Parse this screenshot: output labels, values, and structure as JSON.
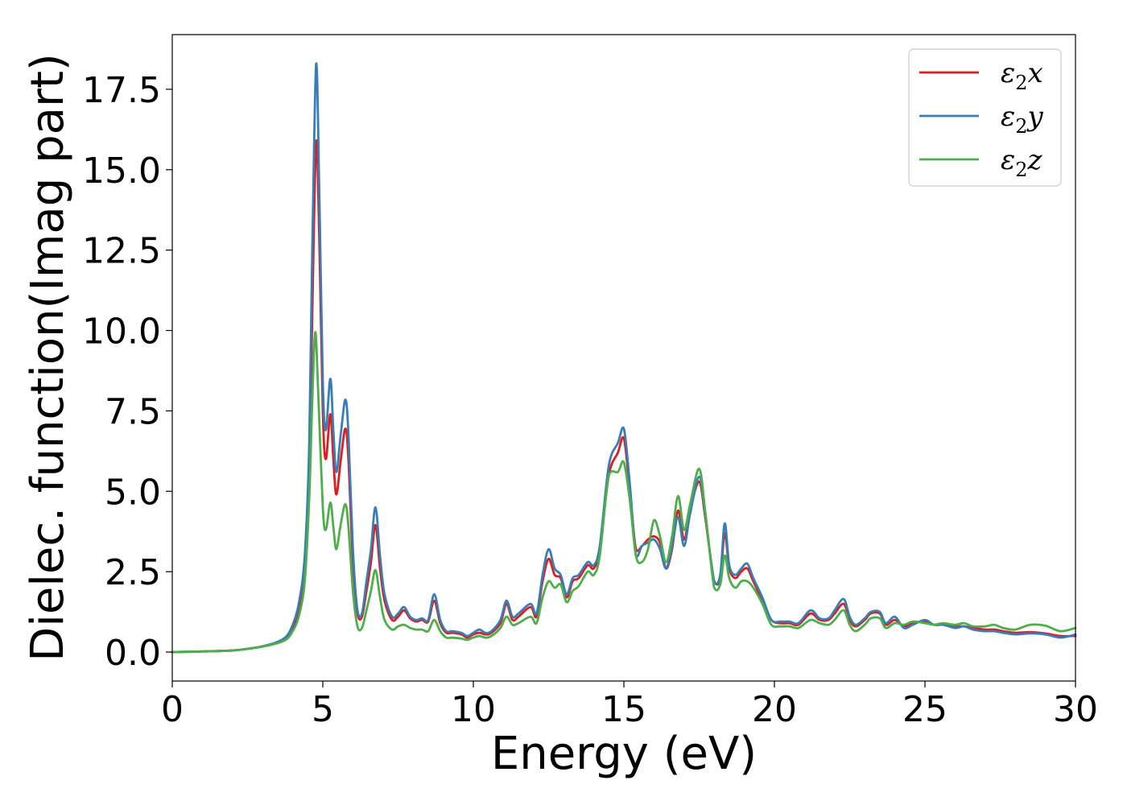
{
  "chart_data": {
    "type": "line",
    "xlabel": "Energy (eV)",
    "ylabel": "Dielec. function(Imag part)",
    "xlim": [
      0,
      30
    ],
    "ylim": [
      -0.9,
      19.2
    ],
    "x_ticks": [
      "0",
      "5",
      "10",
      "15",
      "20",
      "25",
      "30"
    ],
    "y_ticks": [
      "0.0",
      "2.5",
      "5.0",
      "7.5",
      "10.0",
      "12.5",
      "15.0",
      "17.5"
    ],
    "grid": false,
    "legend_position": "top-right",
    "series": [
      {
        "name": "ε2x",
        "legend_main": "ε",
        "legend_sub": "2",
        "legend_suffix": "x",
        "color": "#e41a1c",
        "x": [
          0,
          1,
          2,
          2.5,
          3,
          3.5,
          3.8,
          4.0,
          4.2,
          4.4,
          4.55,
          4.65,
          4.78,
          4.88,
          5.0,
          5.1,
          5.25,
          5.35,
          5.45,
          5.6,
          5.75,
          5.85,
          6.0,
          6.15,
          6.3,
          6.45,
          6.6,
          6.75,
          6.9,
          7.05,
          7.3,
          7.5,
          7.7,
          7.9,
          8.1,
          8.3,
          8.5,
          8.7,
          8.9,
          9.1,
          9.3,
          9.6,
          9.8,
          10.0,
          10.2,
          10.4,
          10.6,
          10.9,
          11.1,
          11.3,
          11.5,
          11.9,
          12.1,
          12.3,
          12.5,
          12.7,
          12.9,
          13.1,
          13.3,
          13.5,
          13.8,
          14.0,
          14.2,
          14.5,
          14.8,
          15.0,
          15.2,
          15.4,
          15.6,
          15.8,
          16.0,
          16.2,
          16.4,
          16.6,
          16.8,
          17.0,
          17.2,
          17.5,
          17.7,
          18.0,
          18.2,
          18.35,
          18.5,
          18.7,
          18.9,
          19.1,
          19.3,
          19.6,
          19.9,
          20.2,
          20.5,
          20.8,
          21.2,
          21.5,
          21.8,
          22.0,
          22.3,
          22.5,
          22.7,
          23.0,
          23.2,
          23.5,
          23.7,
          24.0,
          24.3,
          24.6,
          25.0,
          25.3,
          25.6,
          26.0,
          26.3,
          26.6,
          27.0,
          27.3,
          27.6,
          28.0,
          28.5,
          29.0,
          29.5,
          30.0
        ],
        "y": [
          0.0,
          0.02,
          0.05,
          0.1,
          0.18,
          0.3,
          0.45,
          0.75,
          1.3,
          2.6,
          5.5,
          10.5,
          15.9,
          13.0,
          7.5,
          6.0,
          7.4,
          6.0,
          4.9,
          6.0,
          6.95,
          6.0,
          2.8,
          1.2,
          1.1,
          1.9,
          2.8,
          3.95,
          2.6,
          1.6,
          1.0,
          1.1,
          1.3,
          1.05,
          0.95,
          1.0,
          0.95,
          1.6,
          0.9,
          0.6,
          0.6,
          0.55,
          0.45,
          0.55,
          0.6,
          0.55,
          0.6,
          0.9,
          1.5,
          1.0,
          1.1,
          1.4,
          1.1,
          2.2,
          2.9,
          2.4,
          2.3,
          1.7,
          2.2,
          2.3,
          2.7,
          2.6,
          3.2,
          5.5,
          6.2,
          6.65,
          5.0,
          3.2,
          3.3,
          3.5,
          3.6,
          3.4,
          2.6,
          3.2,
          4.4,
          3.5,
          4.4,
          5.3,
          4.2,
          2.2,
          2.3,
          3.7,
          2.6,
          2.3,
          2.5,
          2.6,
          2.2,
          1.6,
          1.0,
          0.9,
          0.9,
          0.85,
          1.2,
          1.0,
          1.0,
          1.2,
          1.5,
          1.0,
          0.8,
          1.0,
          1.2,
          1.2,
          0.85,
          1.0,
          0.8,
          0.9,
          0.95,
          0.85,
          0.85,
          0.8,
          0.8,
          0.75,
          0.7,
          0.7,
          0.65,
          0.6,
          0.62,
          0.58,
          0.5,
          0.5
        ]
      },
      {
        "name": "ε2y",
        "legend_main": "ε",
        "legend_sub": "2",
        "legend_suffix": "y",
        "color": "#377eb8",
        "x": [
          0,
          1,
          2,
          2.5,
          3,
          3.5,
          3.8,
          4.0,
          4.2,
          4.4,
          4.55,
          4.65,
          4.78,
          4.88,
          5.0,
          5.1,
          5.25,
          5.35,
          5.45,
          5.6,
          5.75,
          5.85,
          6.0,
          6.15,
          6.3,
          6.45,
          6.6,
          6.75,
          6.9,
          7.05,
          7.3,
          7.5,
          7.7,
          7.9,
          8.1,
          8.3,
          8.5,
          8.7,
          8.9,
          9.1,
          9.3,
          9.6,
          9.8,
          10.0,
          10.2,
          10.4,
          10.6,
          10.9,
          11.1,
          11.3,
          11.5,
          11.9,
          12.1,
          12.3,
          12.5,
          12.7,
          12.9,
          13.1,
          13.3,
          13.5,
          13.8,
          14.0,
          14.2,
          14.5,
          14.8,
          15.0,
          15.2,
          15.4,
          15.6,
          15.8,
          16.0,
          16.2,
          16.4,
          16.6,
          16.8,
          17.0,
          17.2,
          17.5,
          17.7,
          18.0,
          18.2,
          18.35,
          18.5,
          18.7,
          18.9,
          19.1,
          19.3,
          19.6,
          19.9,
          20.2,
          20.5,
          20.8,
          21.2,
          21.5,
          21.8,
          22.0,
          22.3,
          22.5,
          22.7,
          23.0,
          23.2,
          23.5,
          23.7,
          24.0,
          24.3,
          24.6,
          25.0,
          25.3,
          25.6,
          26.0,
          26.3,
          26.6,
          27.0,
          27.3,
          27.6,
          28.0,
          28.5,
          29.0,
          29.5,
          30.0
        ],
        "y": [
          0.0,
          0.02,
          0.05,
          0.1,
          0.18,
          0.32,
          0.5,
          0.85,
          1.5,
          3.0,
          6.5,
          12.5,
          18.3,
          14.5,
          8.4,
          6.9,
          8.5,
          6.9,
          5.6,
          6.8,
          7.85,
          6.8,
          3.2,
          1.3,
          1.2,
          2.2,
          3.2,
          4.5,
          3.0,
          1.8,
          1.1,
          1.2,
          1.4,
          1.1,
          1.0,
          1.05,
          1.0,
          1.8,
          1.0,
          0.65,
          0.65,
          0.6,
          0.5,
          0.6,
          0.7,
          0.6,
          0.65,
          1.0,
          1.6,
          1.1,
          1.2,
          1.5,
          1.2,
          2.4,
          3.2,
          2.6,
          2.4,
          1.8,
          2.3,
          2.4,
          2.8,
          2.7,
          3.3,
          5.8,
          6.5,
          6.95,
          5.2,
          3.0,
          3.3,
          3.4,
          3.5,
          3.2,
          2.6,
          3.3,
          4.2,
          3.3,
          4.3,
          5.45,
          4.3,
          2.2,
          2.4,
          4.0,
          2.7,
          2.4,
          2.6,
          2.75,
          2.3,
          1.7,
          1.0,
          0.95,
          0.95,
          0.9,
          1.3,
          1.05,
          1.05,
          1.3,
          1.65,
          1.1,
          0.85,
          1.05,
          1.25,
          1.25,
          0.9,
          1.1,
          0.75,
          0.85,
          1.0,
          0.85,
          0.85,
          0.75,
          0.8,
          0.7,
          0.65,
          0.65,
          0.6,
          0.55,
          0.58,
          0.55,
          0.45,
          0.55
        ]
      },
      {
        "name": "ε2z",
        "legend_main": "ε",
        "legend_sub": "2",
        "legend_suffix": "z",
        "color": "#4daf4a",
        "x": [
          0,
          1,
          2,
          2.5,
          3,
          3.5,
          3.8,
          4.0,
          4.2,
          4.4,
          4.55,
          4.65,
          4.75,
          4.85,
          5.0,
          5.1,
          5.25,
          5.35,
          5.45,
          5.6,
          5.75,
          5.85,
          6.0,
          6.15,
          6.3,
          6.45,
          6.6,
          6.75,
          6.9,
          7.05,
          7.3,
          7.5,
          7.7,
          7.9,
          8.1,
          8.3,
          8.5,
          8.7,
          8.9,
          9.1,
          9.3,
          9.6,
          9.8,
          10.0,
          10.2,
          10.4,
          10.6,
          10.9,
          11.1,
          11.3,
          11.5,
          11.9,
          12.1,
          12.3,
          12.5,
          12.7,
          12.9,
          13.1,
          13.3,
          13.5,
          13.8,
          14.0,
          14.2,
          14.5,
          14.8,
          15.0,
          15.2,
          15.4,
          15.6,
          15.8,
          16.0,
          16.2,
          16.4,
          16.6,
          16.8,
          17.0,
          17.2,
          17.5,
          17.7,
          18.0,
          18.2,
          18.35,
          18.5,
          18.7,
          18.9,
          19.1,
          19.3,
          19.6,
          19.9,
          20.2,
          20.5,
          20.8,
          21.2,
          21.5,
          21.8,
          22.0,
          22.3,
          22.5,
          22.7,
          23.0,
          23.2,
          23.5,
          23.7,
          24.0,
          24.3,
          24.6,
          25.0,
          25.3,
          25.6,
          26.0,
          26.3,
          26.6,
          27.0,
          27.3,
          27.6,
          28.0,
          28.5,
          29.0,
          29.5,
          30.0
        ],
        "y": [
          0.0,
          0.02,
          0.05,
          0.1,
          0.17,
          0.28,
          0.4,
          0.65,
          1.1,
          2.2,
          4.8,
          7.8,
          9.95,
          8.0,
          4.5,
          3.8,
          4.65,
          3.9,
          3.2,
          4.0,
          4.6,
          3.9,
          1.9,
          0.8,
          0.75,
          1.3,
          1.9,
          2.55,
          1.7,
          1.0,
          0.7,
          0.8,
          0.85,
          0.75,
          0.7,
          0.7,
          0.65,
          1.0,
          0.65,
          0.45,
          0.45,
          0.42,
          0.38,
          0.45,
          0.5,
          0.45,
          0.5,
          0.75,
          1.1,
          0.85,
          0.9,
          1.1,
          0.9,
          1.7,
          2.2,
          2.0,
          2.1,
          1.55,
          1.9,
          2.05,
          2.5,
          2.4,
          3.0,
          5.5,
          5.6,
          5.9,
          4.7,
          3.0,
          2.8,
          3.2,
          4.1,
          3.6,
          2.8,
          3.6,
          4.85,
          3.8,
          4.6,
          5.7,
          4.4,
          2.0,
          2.1,
          3.0,
          2.3,
          2.0,
          2.2,
          2.2,
          2.0,
          1.5,
          0.85,
          0.8,
          0.8,
          0.75,
          1.0,
          0.9,
          0.85,
          1.0,
          1.3,
          0.85,
          0.65,
          0.85,
          1.05,
          1.05,
          0.75,
          0.9,
          0.85,
          0.95,
          0.9,
          0.85,
          0.9,
          0.85,
          0.9,
          0.8,
          0.8,
          0.85,
          0.75,
          0.7,
          0.85,
          0.82,
          0.65,
          0.75
        ]
      }
    ]
  }
}
